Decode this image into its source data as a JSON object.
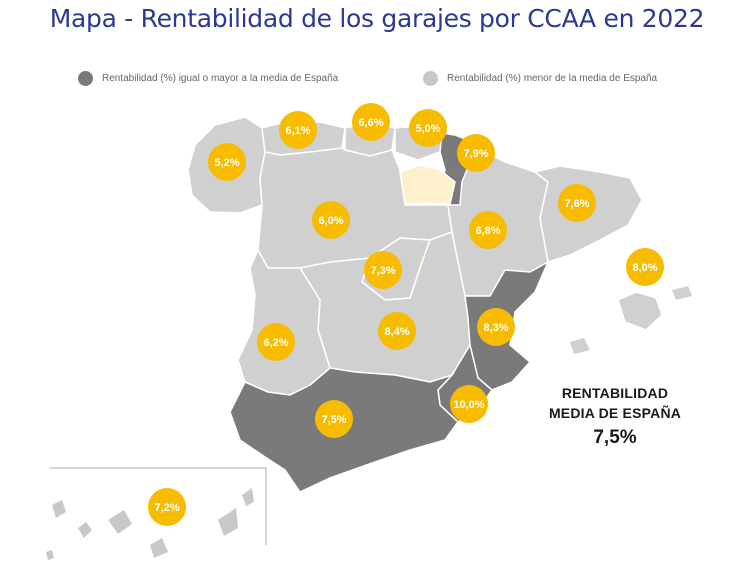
{
  "title": "Mapa - Rentabilidad de los garajes por CCAA en 2022",
  "legend": {
    "high": {
      "label": "Rentabilidad (%) igual o mayor a la media de España",
      "color": "#7a7a7a"
    },
    "low": {
      "label": "Rentabilidad (%) menor de la media de España",
      "color": "#c8c8c8"
    }
  },
  "colors": {
    "badge": "#f7bc00",
    "high": "#7a7a7a",
    "low": "#d0d0d0",
    "highlight": "#fdf0cc"
  },
  "average": {
    "line1": "RENTABILIDAD",
    "line2": "MEDIA DE ESPAÑA",
    "value": "7,5%"
  },
  "regions": {
    "galicia": "5,2%",
    "asturias": "6,1%",
    "cantabria": "6,6%",
    "pais_vasco": "5,0%",
    "navarra": "7,9%",
    "castilla_leon": "6,0%",
    "aragon": "6,8%",
    "cataluna": "7,6%",
    "baleares": "8,0%",
    "madrid": "7,3%",
    "extremadura": "6,2%",
    "castilla_la_mancha": "8,4%",
    "valencia": "8,3%",
    "murcia": "10,0%",
    "andalucia": "7,5%",
    "canarias": "7,2%"
  }
}
